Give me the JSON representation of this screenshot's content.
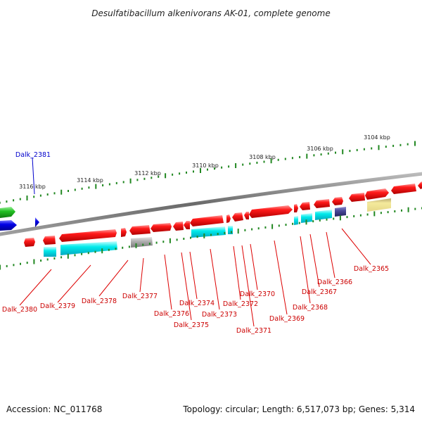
{
  "title": "Desulfatibacillum alkenivorans AK-01, complete genome",
  "footer": {
    "accession": "Accession: NC_011768",
    "topology": "Topology: circular; Length: 6,517,073 bp; Genes: 5,314"
  },
  "colors": {
    "backbone": "#808080",
    "gene_red": "#e00000",
    "gene_cyan": "#00e0e0",
    "gene_gray": "#a8a8a8",
    "gene_navy": "#3a3a8a",
    "gene_khaki": "#e8dc90",
    "gene_green": "#22b822",
    "gene_blue": "#0000dd",
    "tick_green": "#228822",
    "label_red": "#cc0000",
    "label_blue": "#0000cc"
  },
  "kbp_labels": [
    "3104 kbp",
    "3106 kbp",
    "3108 kbp",
    "3110 kbp",
    "3112 kbp",
    "3114 kbp",
    "3116 kbp"
  ],
  "gene_labels": [
    {
      "id": "g2365",
      "text": "Dalk_2365"
    },
    {
      "id": "g2366",
      "text": "Dalk_2366"
    },
    {
      "id": "g2367",
      "text": "Dalk_2367"
    },
    {
      "id": "g2368",
      "text": "Dalk_2368"
    },
    {
      "id": "g2369",
      "text": "Dalk_2369"
    },
    {
      "id": "g2370",
      "text": "Dalk_2370"
    },
    {
      "id": "g2371",
      "text": "Dalk_2371"
    },
    {
      "id": "g2372",
      "text": "Dalk_2372"
    },
    {
      "id": "g2373",
      "text": "Dalk_2373"
    },
    {
      "id": "g2374",
      "text": "Dalk_2374"
    },
    {
      "id": "g2375",
      "text": "Dalk_2375"
    },
    {
      "id": "g2376",
      "text": "Dalk_2376"
    },
    {
      "id": "g2377",
      "text": "Dalk_2377"
    },
    {
      "id": "g2378",
      "text": "Dalk_2378"
    },
    {
      "id": "g2379",
      "text": "Dalk_2379"
    },
    {
      "id": "g2380",
      "text": "Dalk_2380"
    },
    {
      "id": "g2381",
      "text": "Dalk_2381"
    }
  ]
}
